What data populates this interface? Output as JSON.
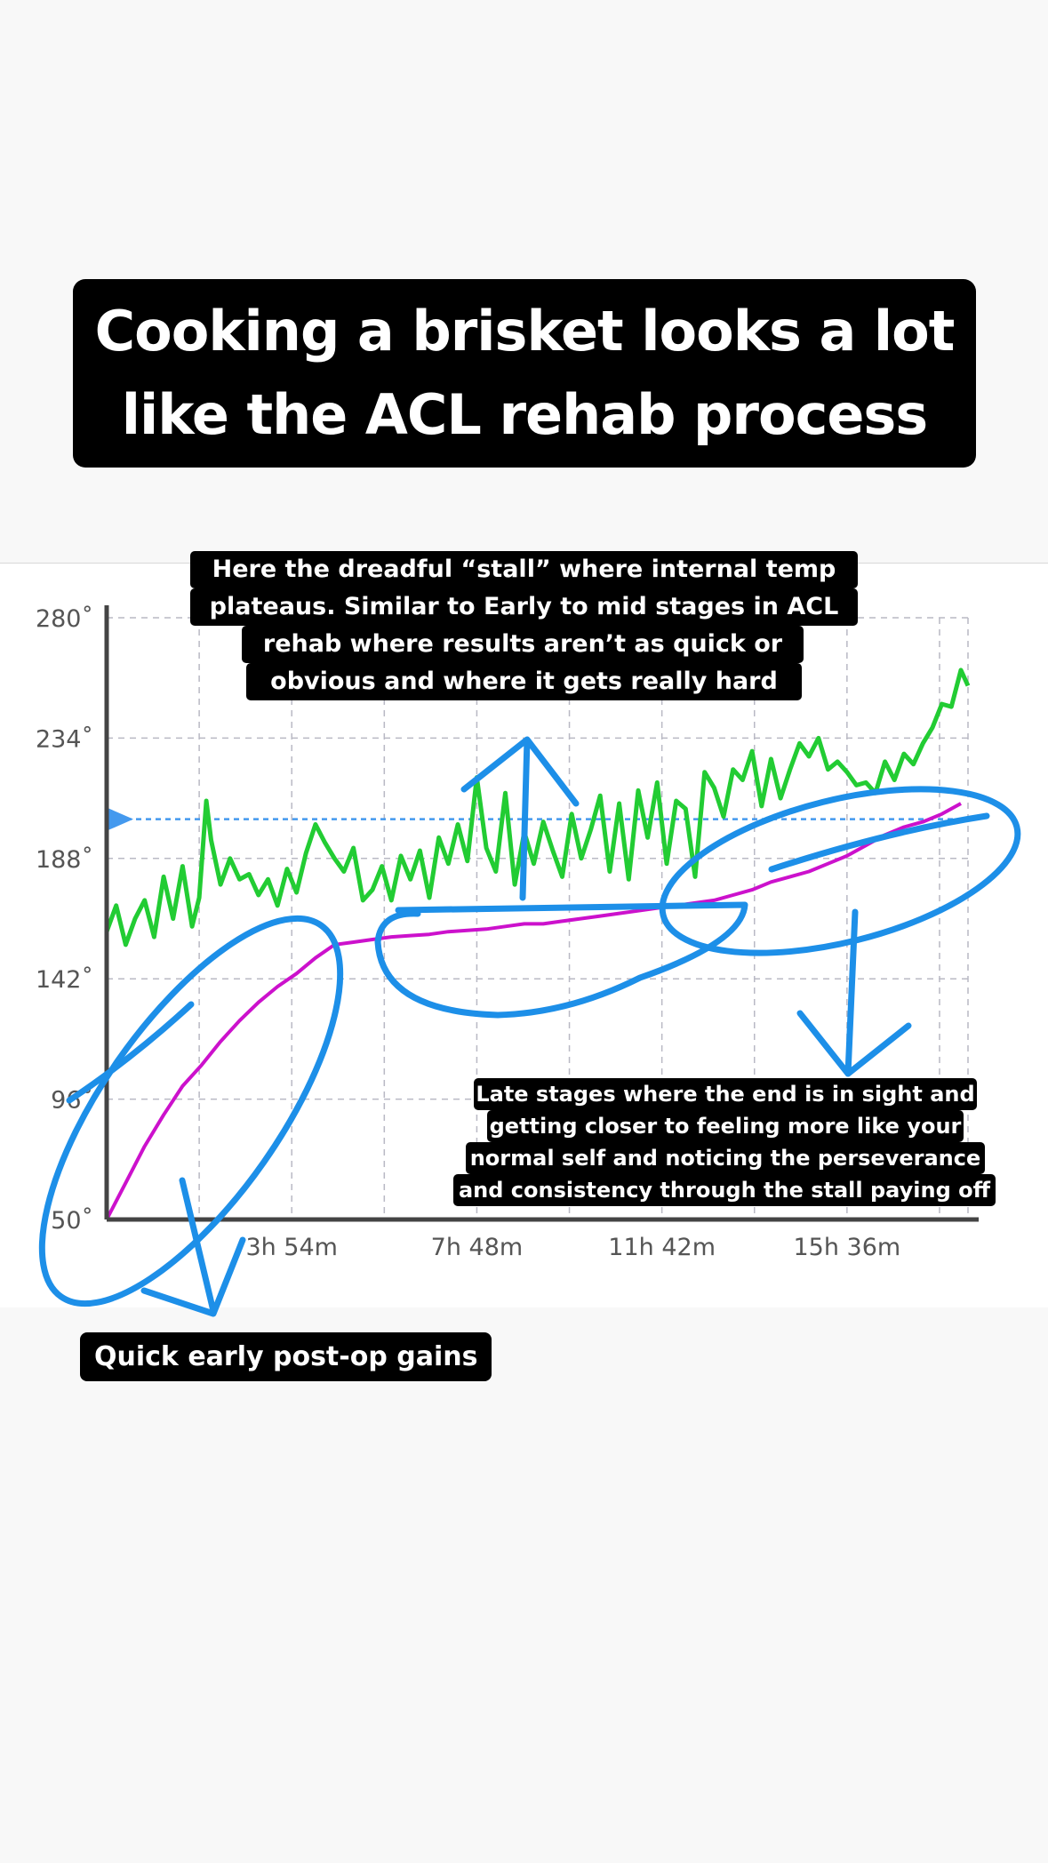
{
  "title": "Cooking a brisket looks a lot like the ACL rehab process",
  "annotations": {
    "stall": [
      "Here the dreadful “stall” where internal temp",
      "plateaus. Similar to Early to mid stages in ACL",
      "rehab where results aren’t as quick or",
      "obvious and where it gets really hard"
    ],
    "late": [
      "Late stages where the end is in sight and",
      "getting closer to feeling more like your",
      "normal self and noticing the perseverance",
      "and consistency through the stall paying off"
    ],
    "early": "Quick early post-op gains"
  },
  "colors": {
    "ambient": "#22cc33",
    "internal": "#cc11cc",
    "target": "#4499ee",
    "ink": "#1d8fe8"
  },
  "chart_data": {
    "type": "line",
    "xlim": [
      0,
      18.15
    ],
    "ylim": [
      50,
      280
    ],
    "x_ticks": [
      3.9,
      7.8,
      11.7,
      15.6
    ],
    "x_tick_labels": [
      "3h 54m",
      "7h 48m",
      "11h 42m",
      "15h 36m"
    ],
    "y_ticks": [
      50,
      96,
      142,
      188,
      234,
      280
    ],
    "y_tick_labels": [
      "50˚",
      "96˚",
      "142˚",
      "188˚",
      "234˚",
      "280˚"
    ],
    "target_line": 203,
    "grid": true,
    "series": [
      {
        "key": "ambient",
        "x": [
          0,
          0.2,
          0.4,
          0.6,
          0.8,
          1.0,
          1.2,
          1.4,
          1.6,
          1.8,
          1.95,
          2.1,
          2.2,
          2.4,
          2.6,
          2.8,
          3.0,
          3.2,
          3.4,
          3.6,
          3.8,
          4.0,
          4.2,
          4.4,
          4.6,
          4.8,
          5.0,
          5.2,
          5.4,
          5.6,
          5.8,
          6.0,
          6.2,
          6.4,
          6.6,
          6.8,
          7.0,
          7.2,
          7.4,
          7.6,
          7.8,
          8.0,
          8.2,
          8.4,
          8.6,
          8.8,
          9.0,
          9.2,
          9.4,
          9.6,
          9.8,
          10.0,
          10.2,
          10.4,
          10.6,
          10.8,
          11.0,
          11.2,
          11.4,
          11.6,
          11.8,
          12.0,
          12.2,
          12.4,
          12.6,
          12.8,
          13.0,
          13.2,
          13.4,
          13.6,
          13.8,
          14.0,
          14.2,
          14.4,
          14.6,
          14.8,
          15.0,
          15.2,
          15.4,
          15.6,
          15.8,
          16.0,
          16.2,
          16.4,
          16.6,
          16.8,
          17.0,
          17.2,
          17.4,
          17.6,
          17.8,
          18.0,
          18.15
        ],
        "y": [
          160,
          170,
          155,
          165,
          172,
          158,
          181,
          165,
          185,
          162,
          173,
          210,
          195,
          178,
          188,
          180,
          182,
          174,
          180,
          170,
          184,
          175,
          190,
          201,
          194,
          188,
          183,
          192,
          172,
          176,
          185,
          172,
          189,
          180,
          191,
          173,
          196,
          186,
          201,
          187,
          219,
          192,
          183,
          213,
          178,
          198,
          186,
          202,
          191,
          181,
          205,
          188,
          199,
          212,
          183,
          209,
          180,
          214,
          196,
          217,
          186,
          210,
          207,
          181,
          221,
          215,
          204,
          222,
          218,
          229,
          208,
          226,
          211,
          222,
          232,
          227,
          234,
          222,
          225,
          221,
          216,
          217,
          213,
          225,
          218,
          228,
          224,
          232,
          238,
          247,
          246,
          260,
          254
        ]
      },
      {
        "key": "internal",
        "x": [
          0,
          0.4,
          0.8,
          1.2,
          1.6,
          2.0,
          2.4,
          2.8,
          3.2,
          3.6,
          4.0,
          4.4,
          4.8,
          5.2,
          5.6,
          6.0,
          6.4,
          6.8,
          7.2,
          7.6,
          8.0,
          8.4,
          8.8,
          9.2,
          9.6,
          10.0,
          10.4,
          10.8,
          11.2,
          11.6,
          12.0,
          12.4,
          12.8,
          13.2,
          13.6,
          14.0,
          14.4,
          14.8,
          15.2,
          15.6,
          16.0,
          16.4,
          16.8,
          17.2,
          17.6,
          18.0
        ],
        "y": [
          50,
          64,
          78,
          90,
          101,
          109,
          118,
          126,
          133,
          139,
          144,
          150,
          155,
          156,
          157,
          158,
          158.5,
          159,
          160,
          160.5,
          161,
          162,
          163,
          163,
          164,
          165,
          166,
          167,
          168,
          169,
          170,
          171,
          172,
          174,
          176,
          179,
          181,
          183,
          186,
          189,
          193,
          197,
          200,
          202,
          205,
          209
        ]
      }
    ]
  }
}
